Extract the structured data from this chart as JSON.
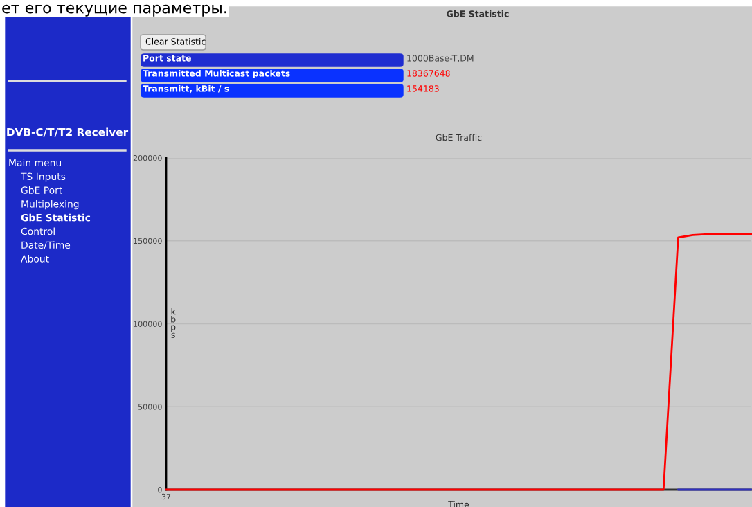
{
  "chart_data": {
    "type": "line",
    "title": "GbE Traffic",
    "xlabel": "Time",
    "ylabel": "kbps",
    "categories": [
      "37",
      null,
      null,
      null,
      null,
      null,
      null,
      null,
      null,
      null,
      null,
      null,
      null,
      null,
      null,
      null,
      null,
      null,
      null,
      null,
      null,
      null,
      null,
      null,
      null,
      null,
      null,
      null,
      null,
      null,
      null,
      null,
      null,
      null,
      null,
      null,
      null,
      null,
      null,
      null,
      null
    ],
    "series": [
      {
        "color": "#3030c0",
        "values": [
          null,
          null,
          null,
          null,
          null,
          null,
          null,
          null,
          null,
          null,
          null,
          null,
          null,
          null,
          null,
          null,
          null,
          null,
          null,
          null,
          null,
          null,
          null,
          null,
          null,
          null,
          null,
          null,
          null,
          null,
          null,
          null,
          null,
          null,
          null,
          0,
          0,
          0,
          0,
          0,
          0
        ]
      },
      {
        "color": "#ff0000",
        "values": [
          0,
          0,
          0,
          0,
          0,
          0,
          0,
          0,
          0,
          0,
          0,
          0,
          0,
          0,
          0,
          0,
          0,
          0,
          0,
          0,
          0,
          0,
          0,
          0,
          0,
          0,
          0,
          0,
          0,
          0,
          0,
          0,
          0,
          0,
          0,
          152000,
          153500,
          154000,
          154000,
          154000,
          154000
        ]
      }
    ],
    "ylim": [
      0,
      200000
    ],
    "yticks": [
      0,
      50000,
      100000,
      150000,
      200000
    ],
    "grid": "y",
    "annotations": [
      "ет его текущие параметры.",
      "GbE Statistic",
      "Clear Statistic",
      "Port state",
      "1000Base-T,DM",
      "Transmitted Multicast packets",
      "18367648",
      "Transmitt, kBit / s",
      "154183",
      "DVB-C/T/T2 Receiver",
      "Main menu",
      "TS Inputs",
      "GbE Port",
      "Multiplexing",
      "GbE Statistic",
      "Control",
      "Date/Time",
      "About"
    ]
  }
}
